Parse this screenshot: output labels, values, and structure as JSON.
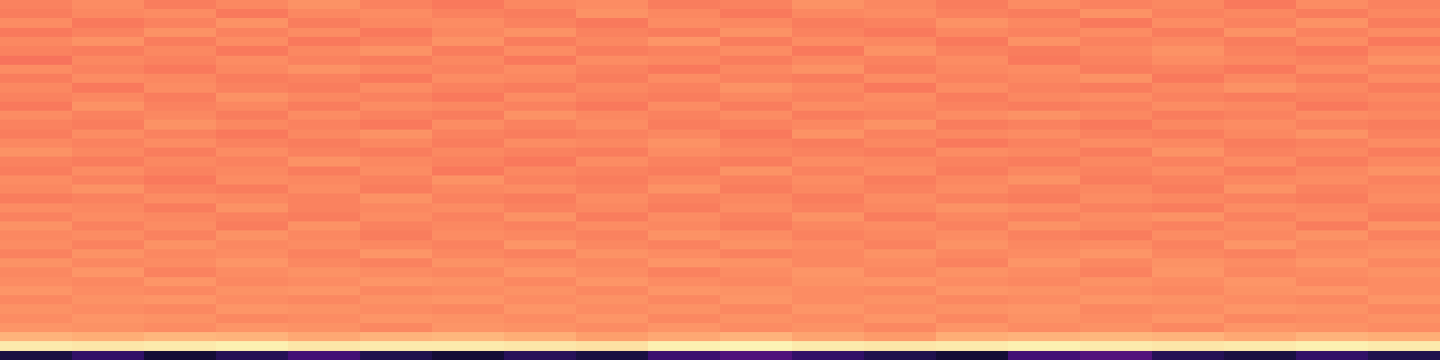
{
  "chart_data": {
    "type": "heatmap",
    "color": "magma",
    "tick_labels": false,
    "color_range": [
      0,
      100
    ],
    "cells": [
      [
        74,
        76,
        73,
        75,
        77,
        74,
        72,
        75,
        76,
        73,
        74,
        77,
        75,
        73,
        76,
        74,
        75,
        72,
        76,
        74
      ],
      [
        73,
        75,
        76,
        72,
        75,
        76,
        74,
        73,
        77,
        75,
        72,
        75,
        76,
        74,
        73,
        77,
        74,
        75,
        73,
        75
      ],
      [
        76,
        72,
        74,
        77,
        73,
        75,
        76,
        74,
        72,
        76,
        75,
        73,
        74,
        77,
        75,
        72,
        76,
        74,
        77,
        73
      ],
      [
        72,
        74,
        77,
        74,
        76,
        72,
        75,
        77,
        74,
        73,
        77,
        74,
        72,
        75,
        74,
        76,
        73,
        77,
        74,
        76
      ],
      [
        75,
        77,
        73,
        76,
        72,
        74,
        77,
        73,
        75,
        78,
        73,
        76,
        75,
        72,
        77,
        74,
        75,
        73,
        76,
        72
      ],
      [
        74,
        73,
        75,
        72,
        75,
        77,
        73,
        76,
        73,
        74,
        76,
        72,
        77,
        74,
        73,
        75,
        77,
        74,
        72,
        75
      ],
      [
        71,
        75,
        74,
        76,
        74,
        73,
        75,
        72,
        76,
        75,
        73,
        75,
        74,
        76,
        72,
        74,
        76,
        75,
        74,
        77
      ],
      [
        76,
        74,
        72,
        75,
        77,
        75,
        74,
        76,
        74,
        72,
        75,
        77,
        73,
        75,
        76,
        73,
        74,
        72,
        76,
        74
      ],
      [
        73,
        76,
        75,
        73,
        74,
        72,
        76,
        75,
        73,
        76,
        74,
        73,
        76,
        74,
        75,
        77,
        72,
        75,
        73,
        76
      ],
      [
        75,
        72,
        76,
        74,
        73,
        76,
        74,
        73,
        75,
        74,
        77,
        75,
        72,
        76,
        74,
        73,
        75,
        77,
        75,
        73
      ],
      [
        74,
        75,
        73,
        77,
        75,
        74,
        72,
        76,
        74,
        73,
        75,
        74,
        76,
        73,
        75,
        76,
        74,
        73,
        74,
        75
      ],
      [
        72,
        77,
        74,
        75,
        73,
        76,
        75,
        74,
        72,
        76,
        73,
        76,
        75,
        74,
        73,
        74,
        76,
        75,
        72,
        74
      ],
      [
        76,
        74,
        75,
        73,
        76,
        74,
        73,
        77,
        75,
        74,
        76,
        73,
        74,
        76,
        77,
        75,
        73,
        74,
        76,
        75
      ],
      [
        74,
        73,
        77,
        75,
        74,
        72,
        76,
        74,
        76,
        73,
        74,
        75,
        77,
        73,
        74,
        72,
        75,
        76,
        74,
        73
      ],
      [
        73,
        76,
        74,
        72,
        75,
        77,
        74,
        73,
        74,
        75,
        72,
        77,
        74,
        75,
        76,
        74,
        73,
        75,
        77,
        74
      ],
      [
        75,
        74,
        76,
        74,
        73,
        75,
        73,
        76,
        75,
        77,
        74,
        73,
        75,
        72,
        74,
        76,
        75,
        73,
        74,
        76
      ],
      [
        77,
        75,
        73,
        76,
        74,
        73,
        75,
        74,
        73,
        76,
        75,
        74,
        73,
        76,
        75,
        73,
        77,
        74,
        75,
        73
      ],
      [
        74,
        73,
        75,
        74,
        77,
        75,
        74,
        72,
        76,
        74,
        73,
        76,
        75,
        74,
        73,
        75,
        74,
        76,
        73,
        75
      ],
      [
        73,
        76,
        74,
        75,
        73,
        76,
        72,
        75,
        74,
        73,
        77,
        74,
        76,
        73,
        75,
        74,
        76,
        73,
        75,
        77
      ],
      [
        76,
        74,
        72,
        76,
        75,
        74,
        77,
        74,
        73,
        75,
        74,
        76,
        73,
        75,
        77,
        73,
        74,
        75,
        76,
        74
      ],
      [
        75,
        77,
        74,
        73,
        76,
        73,
        75,
        76,
        74,
        77,
        73,
        75,
        74,
        76,
        74,
        75,
        73,
        77,
        74,
        75
      ],
      [
        73,
        74,
        76,
        75,
        74,
        77,
        74,
        73,
        76,
        74,
        75,
        73,
        76,
        74,
        73,
        76,
        75,
        74,
        73,
        76
      ],
      [
        76,
        75,
        73,
        77,
        74,
        75,
        76,
        74,
        75,
        73,
        76,
        74,
        75,
        77,
        76,
        74,
        73,
        76,
        75,
        74
      ],
      [
        74,
        76,
        75,
        74,
        73,
        76,
        74,
        77,
        73,
        76,
        74,
        77,
        73,
        75,
        74,
        76,
        77,
        74,
        76,
        73
      ],
      [
        77,
        74,
        76,
        73,
        77,
        74,
        75,
        74,
        76,
        75,
        73,
        75,
        76,
        74,
        77,
        75,
        74,
        76,
        73,
        77
      ],
      [
        75,
        76,
        74,
        77,
        75,
        73,
        76,
        75,
        74,
        77,
        76,
        74,
        75,
        76,
        74,
        73,
        76,
        75,
        77,
        74
      ],
      [
        76,
        74,
        77,
        75,
        76,
        75,
        74,
        78,
        75,
        74,
        77,
        76,
        74,
        77,
        75,
        76,
        74,
        78,
        75,
        76
      ],
      [
        74,
        77,
        75,
        76,
        74,
        78,
        75,
        74,
        77,
        76,
        74,
        75,
        77,
        75,
        76,
        78,
        75,
        74,
        76,
        77
      ],
      [
        77,
        75,
        76,
        78,
        75,
        74,
        77,
        76,
        75,
        78,
        77,
        75,
        76,
        74,
        78,
        75,
        77,
        76,
        78,
        75
      ],
      [
        75,
        78,
        74,
        76,
        77,
        76,
        75,
        78,
        76,
        74,
        76,
        78,
        75,
        77,
        76,
        74,
        78,
        75,
        76,
        77
      ],
      [
        76,
        75,
        78,
        75,
        76,
        78,
        77,
        75,
        78,
        76,
        75,
        77,
        78,
        76,
        75,
        77,
        76,
        78,
        75,
        76
      ],
      [
        78,
        76,
        75,
        77,
        78,
        75,
        76,
        77,
        75,
        78,
        77,
        76,
        75,
        78,
        77,
        76,
        75,
        77,
        78,
        76
      ],
      [
        75,
        77,
        78,
        76,
        75,
        77,
        78,
        76,
        77,
        75,
        78,
        76,
        77,
        75,
        76,
        78,
        77,
        76,
        75,
        78
      ],
      [
        77,
        76,
        75,
        78,
        77,
        76,
        75,
        78,
        76,
        77,
        75,
        78,
        76,
        77,
        78,
        75,
        76,
        78,
        77,
        75
      ],
      [
        76,
        78,
        77,
        75,
        76,
        78,
        77,
        76,
        78,
        75,
        77,
        76,
        78,
        75,
        77,
        76,
        78,
        75,
        76,
        77
      ],
      [
        78,
        77,
        76,
        78,
        77,
        75,
        78,
        77,
        76,
        78,
        76,
        77,
        75,
        78,
        76,
        77,
        75,
        78,
        77,
        76
      ],
      [
        84,
        83,
        85,
        84,
        82,
        84,
        85,
        83,
        80,
        82,
        84,
        81,
        79,
        83,
        84,
        85,
        84,
        82,
        84,
        83
      ],
      [
        96,
        95,
        96,
        97,
        95,
        96,
        96,
        95,
        94,
        97,
        98,
        96,
        95,
        96,
        97,
        96,
        95,
        96,
        97,
        96
      ],
      [
        12,
        18,
        10,
        15,
        22,
        14,
        10,
        16,
        12,
        20,
        25,
        18,
        14,
        10,
        22,
        26,
        15,
        12,
        18,
        14
      ]
    ]
  }
}
